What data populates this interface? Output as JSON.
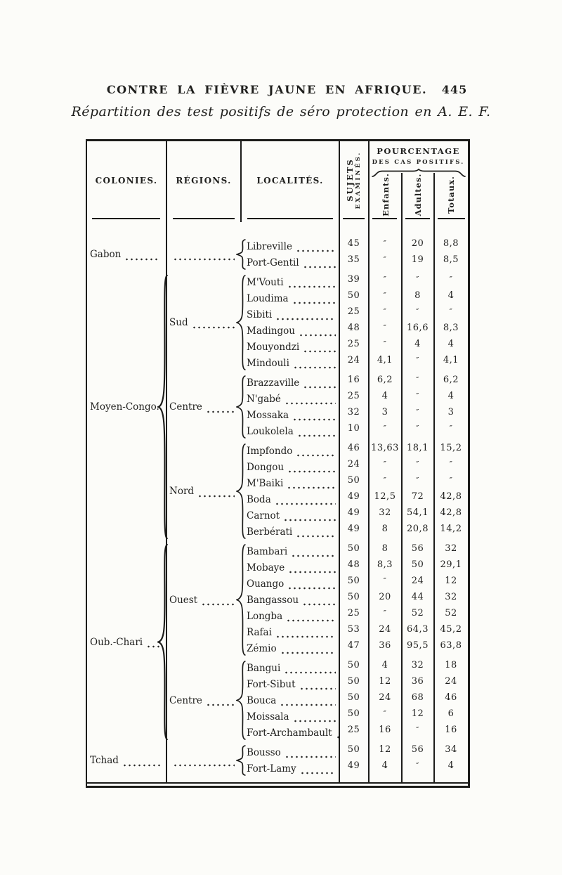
{
  "document": {
    "title": "CONTRE LA FIÈVRE JAUNE EN AFRIQUE.",
    "page_number": "445",
    "subtitle": "Répartition des test positifs de séro protection en A. E. F."
  },
  "table": {
    "headers": {
      "colonies": "COLONIES.",
      "regions": "RÉGIONS.",
      "localites": "LOCALITÉS.",
      "sujets_line1": "SUJETS",
      "sujets_line2": "EXAMINÉS.",
      "pourcentage_line1": "POURCENTAGE",
      "pourcentage_line2": "DES CAS POSITIFS.",
      "sub_enfants": "Enfants.",
      "sub_adultes": "Adultes.",
      "sub_totaux": "Totaux."
    },
    "ditto_mark": "″",
    "groups": [
      {
        "colony": "Gabon",
        "colony_dots": true,
        "colony_brace": false,
        "regions": [
          {
            "name": "",
            "dots": true,
            "rows": [
              [
                "Libreville",
                "45",
                "″",
                "20",
                "8,8"
              ],
              [
                "Port-Gentil",
                "35",
                "″",
                "19",
                "8,5"
              ]
            ]
          }
        ]
      },
      {
        "colony": "Moyen-Congo.",
        "colony_dots": false,
        "colony_brace": true,
        "regions": [
          {
            "name": "Sud",
            "dots": true,
            "rows": [
              [
                "M'Vouti",
                "39",
                "″",
                "″",
                "″"
              ],
              [
                "Loudima",
                "50",
                "″",
                "8",
                "4"
              ],
              [
                "Sibiti",
                "25",
                "″",
                "″",
                "″"
              ],
              [
                "Madingou",
                "48",
                "″",
                "16,6",
                "8,3"
              ],
              [
                "Mouyondzi",
                "25",
                "″",
                "4",
                "4"
              ],
              [
                "Mindouli",
                "24",
                "4,1",
                "″",
                "4,1"
              ]
            ]
          },
          {
            "name": "Centre",
            "dots": true,
            "rows": [
              [
                "Brazzaville",
                "16",
                "6,2",
                "″",
                "6,2"
              ],
              [
                "N'gabé",
                "25",
                "4",
                "″",
                "4"
              ],
              [
                "Mossaka",
                "32",
                "3",
                "″",
                "3"
              ],
              [
                "Loukolela",
                "10",
                "″",
                "″",
                "″"
              ]
            ]
          },
          {
            "name": "Nord",
            "dots": true,
            "rows": [
              [
                "Impfondo",
                "46",
                "13,63",
                "18,1",
                "15,2"
              ],
              [
                "Dongou",
                "24",
                "″",
                "″",
                "″"
              ],
              [
                "M'Baiki",
                "50",
                "″",
                "″",
                "″"
              ],
              [
                "Boda",
                "49",
                "12,5",
                "72",
                "42,8"
              ],
              [
                "Carnot",
                "49",
                "32",
                "54,1",
                "42,8"
              ],
              [
                "Berbérati",
                "49",
                "8",
                "20,8",
                "14,2"
              ]
            ]
          }
        ]
      },
      {
        "colony": "Oub.-Chari",
        "colony_dots": true,
        "colony_brace": true,
        "regions": [
          {
            "name": "Ouest",
            "dots": true,
            "rows": [
              [
                "Bambari",
                "50",
                "8",
                "56",
                "32"
              ],
              [
                "Mobaye",
                "48",
                "8,3",
                "50",
                "29,1"
              ],
              [
                "Ouango",
                "50",
                "″",
                "24",
                "12"
              ],
              [
                "Bangassou",
                "50",
                "20",
                "44",
                "32"
              ],
              [
                "Longba",
                "25",
                "″",
                "52",
                "52"
              ],
              [
                "Rafai",
                "53",
                "24",
                "64,3",
                "45,2"
              ],
              [
                "Zémio",
                "47",
                "36",
                "95,5",
                "63,8"
              ]
            ]
          },
          {
            "name": "Centre",
            "dots": true,
            "rows": [
              [
                "Bangui",
                "50",
                "4",
                "32",
                "18"
              ],
              [
                "Fort-Sibut",
                "50",
                "12",
                "36",
                "24"
              ],
              [
                "Bouca",
                "50",
                "24",
                "68",
                "46"
              ],
              [
                "Moissala",
                "50",
                "″",
                "12",
                "6"
              ],
              [
                "Fort-Archambault",
                "25",
                "16",
                "″",
                "16"
              ]
            ]
          }
        ]
      },
      {
        "colony": "Tchad",
        "colony_dots": true,
        "colony_brace": false,
        "regions": [
          {
            "name": "",
            "dots": true,
            "rows": [
              [
                "Bousso",
                "50",
                "12",
                "56",
                "34"
              ],
              [
                "Fort-Lamy",
                "49",
                "4",
                "″",
                "4"
              ]
            ]
          }
        ]
      }
    ]
  }
}
